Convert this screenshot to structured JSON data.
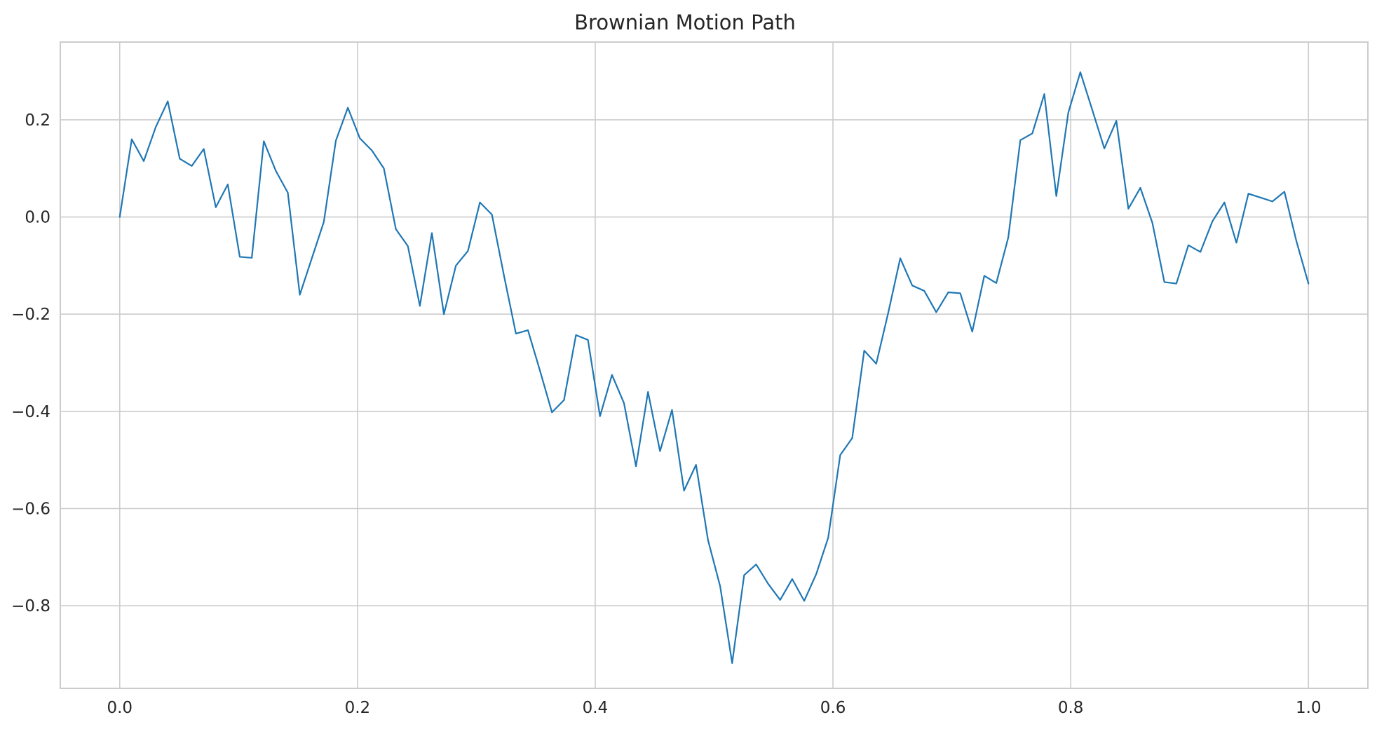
{
  "colors": {
    "line": "#1f77b4"
  },
  "chart_data": {
    "type": "line",
    "title": "Brownian Motion Path",
    "xlabel": "",
    "ylabel": "",
    "xlim": [
      -0.05,
      1.05
    ],
    "ylim": [
      -0.97,
      0.36
    ],
    "grid": true,
    "xticks": [
      0.0,
      0.2,
      0.4,
      0.6,
      0.8,
      1.0
    ],
    "xtick_labels": [
      "0.0",
      "0.2",
      "0.4",
      "0.6",
      "0.8",
      "1.0"
    ],
    "yticks": [
      -0.8,
      -0.6,
      -0.4,
      -0.2,
      0.0,
      0.2
    ],
    "ytick_labels": [
      "−0.8",
      "−0.6",
      "−0.4",
      "−0.2",
      "0.0",
      "0.2"
    ],
    "series": [
      {
        "x": [
          0.0,
          0.0101,
          0.0202,
          0.0303,
          0.0404,
          0.0505,
          0.0606,
          0.0707,
          0.0808,
          0.0909,
          0.101,
          0.1111,
          0.1212,
          0.1313,
          0.1414,
          0.1515,
          0.1616,
          0.1717,
          0.1818,
          0.1919,
          0.202,
          0.2121,
          0.2222,
          0.2323,
          0.2424,
          0.2525,
          0.2626,
          0.2727,
          0.2828,
          0.2929,
          0.303,
          0.3131,
          0.3232,
          0.3333,
          0.3434,
          0.3535,
          0.3636,
          0.3737,
          0.3838,
          0.3939,
          0.404,
          0.4141,
          0.4242,
          0.4343,
          0.4444,
          0.4545,
          0.4646,
          0.4747,
          0.4848,
          0.4949,
          0.5051,
          0.5152,
          0.5253,
          0.5354,
          0.5455,
          0.5556,
          0.5657,
          0.5758,
          0.5859,
          0.596,
          0.6061,
          0.6162,
          0.6263,
          0.6364,
          0.6465,
          0.6566,
          0.6667,
          0.6768,
          0.6869,
          0.697,
          0.7071,
          0.7172,
          0.7273,
          0.7374,
          0.7475,
          0.7576,
          0.7677,
          0.7778,
          0.7879,
          0.798,
          0.8081,
          0.8182,
          0.8283,
          0.8384,
          0.8485,
          0.8586,
          0.8687,
          0.8788,
          0.8889,
          0.899,
          0.9091,
          0.9192,
          0.9293,
          0.9394,
          0.9495,
          0.9596,
          0.9697,
          0.9798,
          0.9899,
          1.0
        ],
        "y": [
          0.0,
          0.16,
          0.115,
          0.185,
          0.238,
          0.12,
          0.105,
          0.14,
          0.02,
          0.067,
          -0.082,
          -0.084,
          0.156,
          0.095,
          0.05,
          -0.16,
          -0.085,
          -0.01,
          0.157,
          0.225,
          0.162,
          0.137,
          0.1,
          -0.025,
          -0.06,
          -0.183,
          -0.033,
          -0.2,
          -0.1,
          -0.07,
          0.03,
          0.005,
          -0.12,
          -0.24,
          -0.233,
          -0.316,
          -0.402,
          -0.377,
          -0.243,
          -0.253,
          -0.41,
          -0.325,
          -0.383,
          -0.513,
          -0.36,
          -0.482,
          -0.397,
          -0.563,
          -0.51,
          -0.665,
          -0.76,
          -0.918,
          -0.737,
          -0.715,
          -0.755,
          -0.788,
          -0.745,
          -0.79,
          -0.735,
          -0.66,
          -0.49,
          -0.455,
          -0.275,
          -0.302,
          -0.197,
          -0.085,
          -0.141,
          -0.152,
          -0.196,
          -0.155,
          -0.157,
          -0.236,
          -0.121,
          -0.136,
          -0.042,
          0.158,
          0.172,
          0.253,
          0.043,
          0.215,
          0.298,
          0.22,
          0.141,
          0.198,
          0.017,
          0.06,
          -0.012,
          -0.134,
          -0.137,
          -0.058,
          -0.072,
          -0.009,
          0.03,
          -0.053,
          0.048,
          0.04,
          0.032,
          0.052,
          -0.05,
          -0.137
        ]
      }
    ]
  }
}
